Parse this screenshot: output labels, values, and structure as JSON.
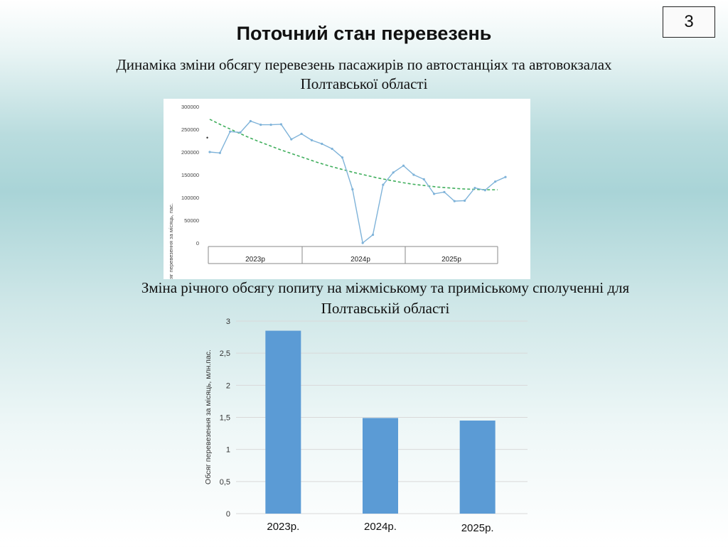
{
  "slide_number": "3",
  "title": "Поточний стан перевезень",
  "subtitle1_line1": "Динаміка зміни обсягу перевезень пасажирів по автостанціях та автовокзалах",
  "subtitle1_line2": "Полтавської області",
  "subtitle2_line1": "Зміна річного обсягу попиту на міжміському та приміському сполученні для",
  "subtitle2_line2": "Полтавській області",
  "colors": {
    "line": "#7fb3d9",
    "trend": "#3fae5c",
    "bar": "#5b9bd5",
    "grid": "#d9d9d9"
  },
  "chart_data": [
    {
      "type": "line",
      "ylabel": "Обсяг перевезення за місяць, пас.",
      "ylim": [
        0,
        300000
      ],
      "yticks": [
        "300000",
        "250000",
        "200000",
        "150000",
        "100000",
        "50000",
        "0"
      ],
      "ytick_values": [
        300000,
        250000,
        200000,
        150000,
        100000,
        50000,
        0
      ],
      "groups": [
        "2023р",
        "2024р",
        "2025р"
      ],
      "series": [
        {
          "values": [
            200000,
            198000,
            245000,
            243000,
            268000,
            260000,
            260000,
            261000,
            228000,
            240000,
            226000,
            218000,
            207000,
            188000,
            118000,
            0,
            18000,
            128000,
            155000,
            170000,
            150000,
            140000,
            108000,
            112000,
            92000,
            93000,
            121000,
            116000,
            135000,
            145000
          ]
        },
        {
          "values": [
            272000,
            259000,
            247000,
            235000,
            224000,
            214000,
            204000,
            195000,
            186000,
            177000,
            169000,
            162000,
            155000,
            149000,
            143000,
            138000,
            133000,
            129000,
            126000,
            123000,
            121000,
            119000,
            118000,
            117000,
            117000
          ]
        }
      ]
    },
    {
      "type": "bar",
      "ylabel": "Обсяг перевезення за місяць, млн.пас.",
      "ylim": [
        0,
        3
      ],
      "yticks": [
        "3",
        "2,5",
        "2",
        "1,5",
        "1",
        "0,5",
        "0"
      ],
      "ytick_values": [
        3,
        2.5,
        2,
        1.5,
        1,
        0.5,
        0
      ],
      "categories": [
        "2023р.",
        "2024р.",
        "2025р."
      ],
      "values": [
        2.85,
        1.49,
        1.45
      ]
    }
  ]
}
